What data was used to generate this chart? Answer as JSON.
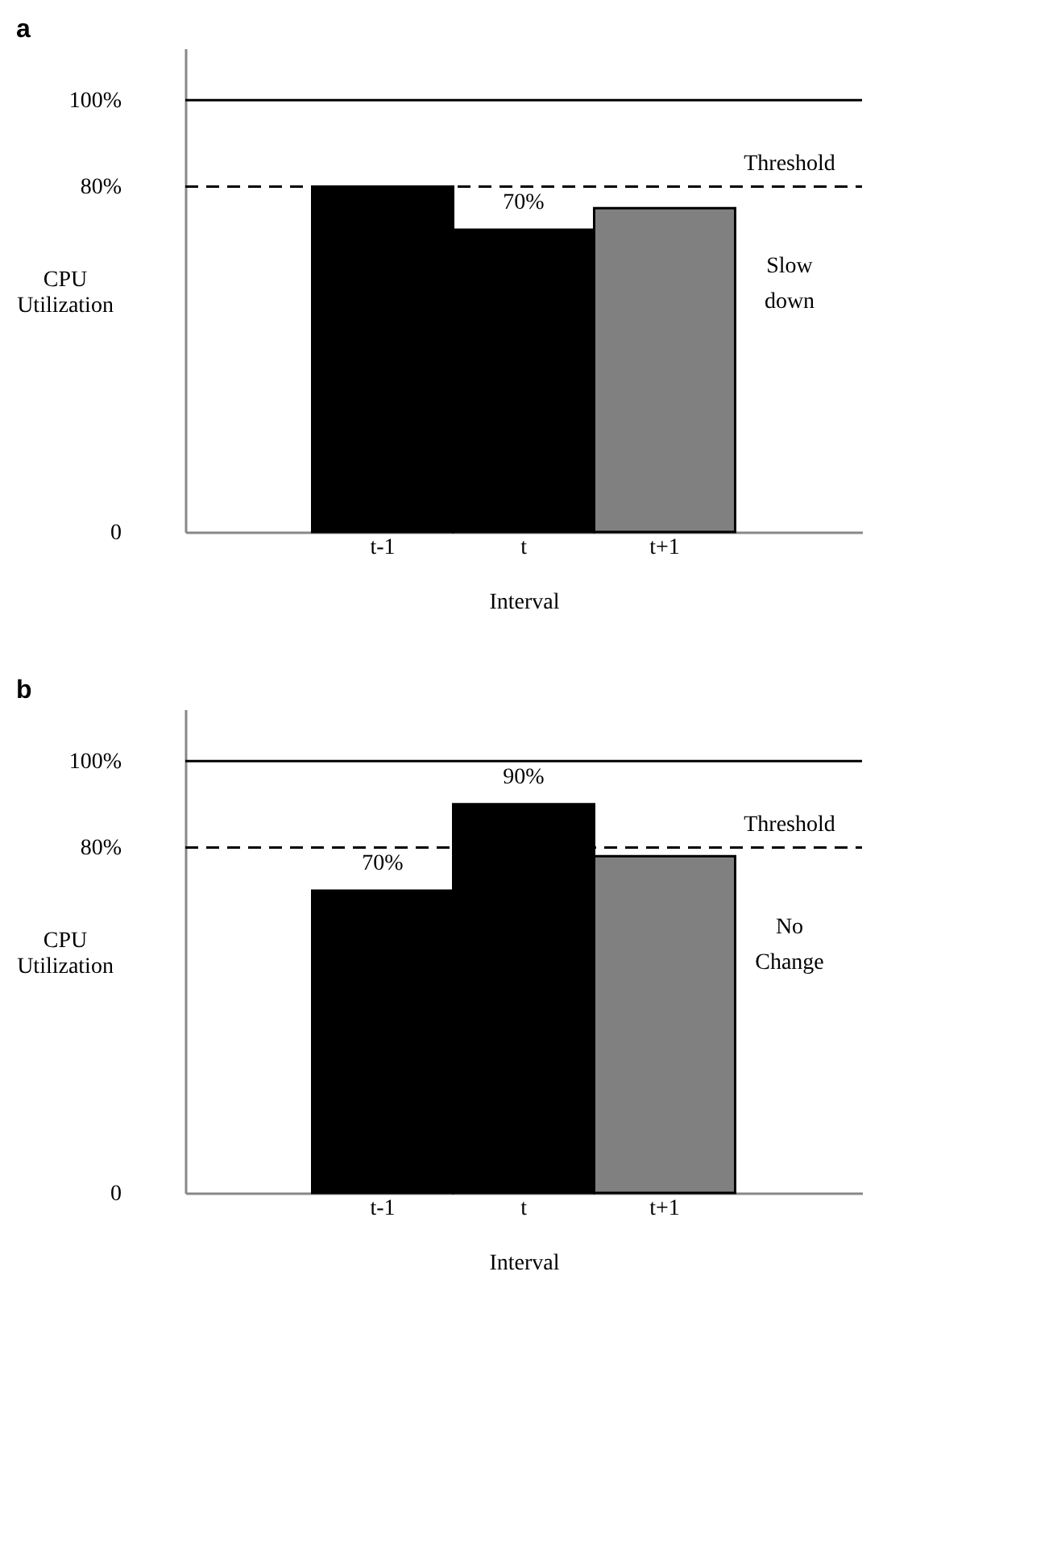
{
  "chart_data": [
    {
      "type": "bar",
      "title": "a",
      "xlabel": "Interval",
      "ylabel": "CPU\nUtilization",
      "categories": [
        "t-1",
        "t",
        "t+1"
      ],
      "values": [
        80,
        70,
        75
      ],
      "colors": [
        "#000000",
        "#000000",
        "#808080"
      ],
      "value_labels": [
        null,
        "70%",
        null
      ],
      "ylim": [
        0,
        112
      ],
      "yticks": [
        {
          "value": 0,
          "label": "0"
        },
        {
          "value": 80,
          "label": "80%"
        },
        {
          "value": 100,
          "label": "100%"
        }
      ],
      "ref_lines": [
        {
          "axis": "y",
          "value": 100,
          "label": null,
          "line_style": "solid"
        },
        {
          "axis": "y",
          "value": 80,
          "label": "Threshold",
          "line_style": "dashed"
        }
      ],
      "annotations": [
        "Slow\ndown"
      ],
      "grid": false
    },
    {
      "type": "bar",
      "title": "b",
      "xlabel": "Interval",
      "ylabel": "CPU\nUtilization",
      "categories": [
        "t-1",
        "t",
        "t+1"
      ],
      "values": [
        70,
        90,
        78
      ],
      "colors": [
        "#000000",
        "#000000",
        "#808080"
      ],
      "value_labels": [
        "70%",
        "90%",
        null
      ],
      "ylim": [
        0,
        112
      ],
      "yticks": [
        {
          "value": 0,
          "label": "0"
        },
        {
          "value": 80,
          "label": "80%"
        },
        {
          "value": 100,
          "label": "100%"
        }
      ],
      "ref_lines": [
        {
          "axis": "y",
          "value": 100,
          "label": null,
          "line_style": "solid"
        },
        {
          "axis": "y",
          "value": 80,
          "label": "Threshold",
          "line_style": "dashed"
        }
      ],
      "annotations": [
        "No\nChange"
      ],
      "grid": false
    }
  ]
}
